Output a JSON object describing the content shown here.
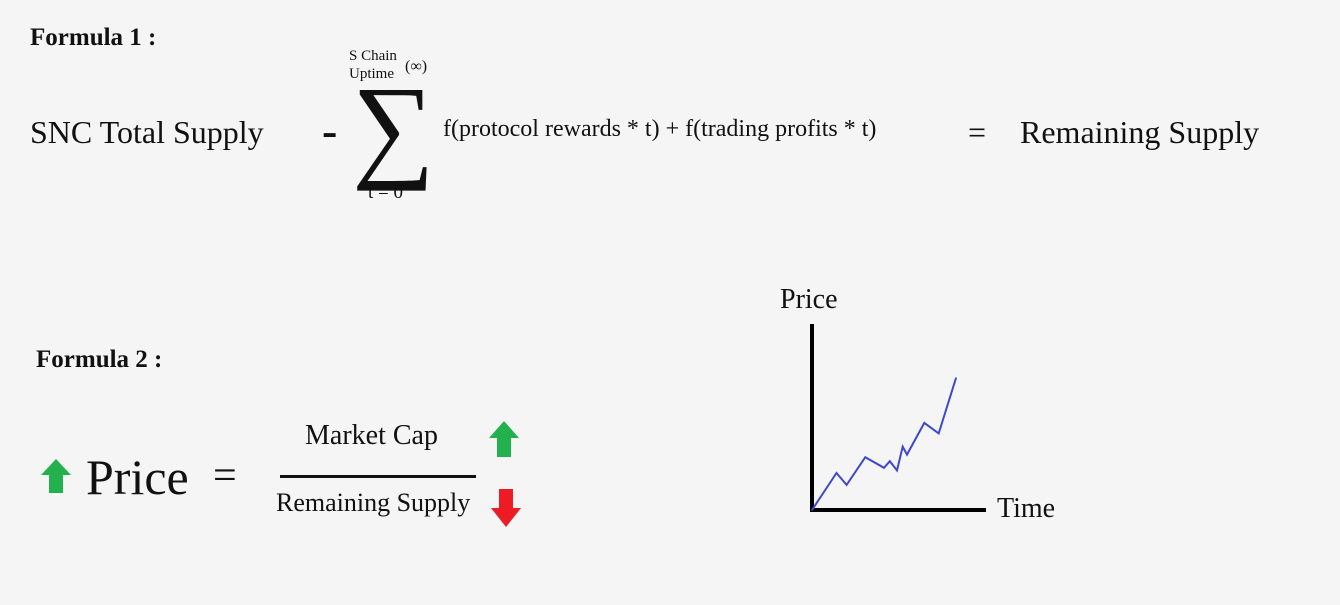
{
  "formula1": {
    "heading": "Formula 1 :",
    "lhs": "SNC  Total Supply",
    "minus": "-",
    "sigma": "∑",
    "upper_limit_line1": "S Chain",
    "upper_limit_line2": "Uptime",
    "upper_limit_infinity": "(∞)",
    "lower_limit": "t = 0",
    "summand": "f(protocol rewards * t) + f(trading profits * t)",
    "equals": "=",
    "rhs": "Remaining Supply"
  },
  "formula2": {
    "heading": "Formula 2 :",
    "price": "Price",
    "equals": "=",
    "numerator": "Market Cap",
    "denominator": "Remaining Supply",
    "colors": {
      "up_arrow": "#22b14c",
      "down_arrow": "#ed1c24"
    }
  },
  "chart_data": {
    "type": "line",
    "ylabel": "Price",
    "xlabel": "Time",
    "x": [
      0,
      0.17,
      0.24,
      0.37,
      0.5,
      0.54,
      0.59,
      0.63,
      0.66,
      0.78,
      0.88,
      1.0
    ],
    "values": [
      0,
      0.28,
      0.19,
      0.4,
      0.32,
      0.37,
      0.3,
      0.48,
      0.42,
      0.66,
      0.58,
      1.0
    ],
    "xlim": [
      0,
      1
    ],
    "ylim": [
      0,
      1
    ],
    "line_color": "#3f48cc",
    "grid": false
  }
}
